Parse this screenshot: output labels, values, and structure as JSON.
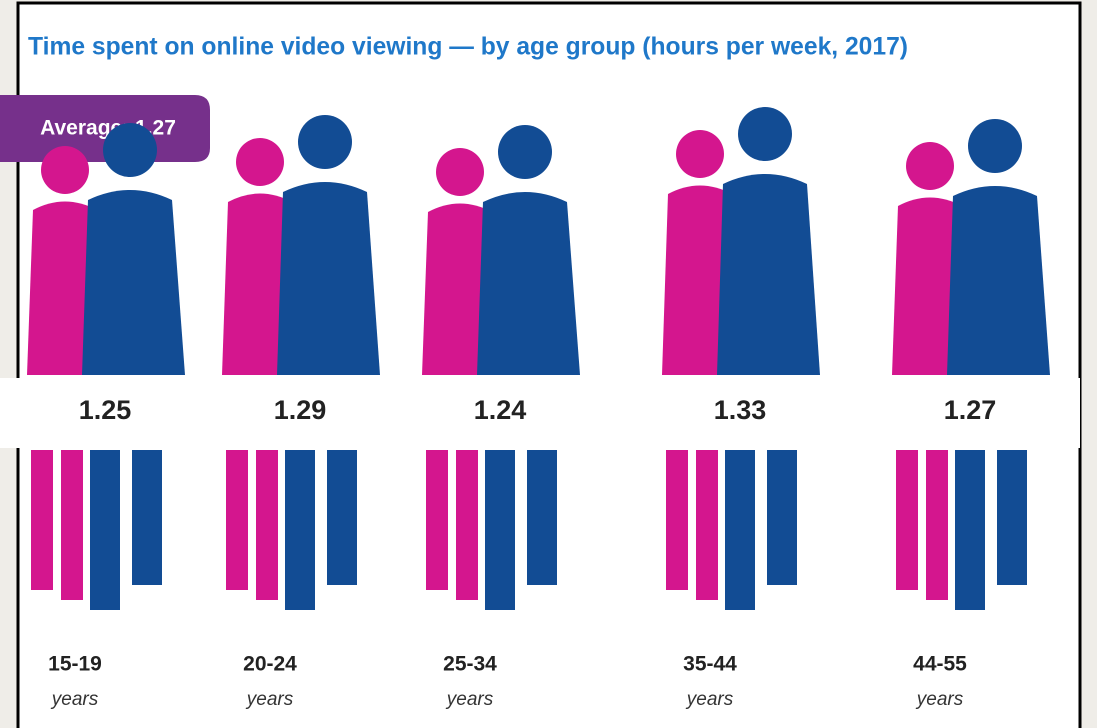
{
  "chart_data": {
    "type": "pictograph",
    "title": "Time spent on online video viewing — by age group (hours per week, 2017)",
    "average": {
      "value": 1.27,
      "label": "Average: 1.27"
    },
    "categories": [
      "15-19",
      "20-24",
      "25-34",
      "35-44",
      "44-55"
    ],
    "category_sublabel": "years",
    "values": [
      1.25,
      1.29,
      1.24,
      1.33,
      1.27
    ],
    "colors": {
      "female": "#d4168e",
      "male": "#124c94"
    }
  }
}
